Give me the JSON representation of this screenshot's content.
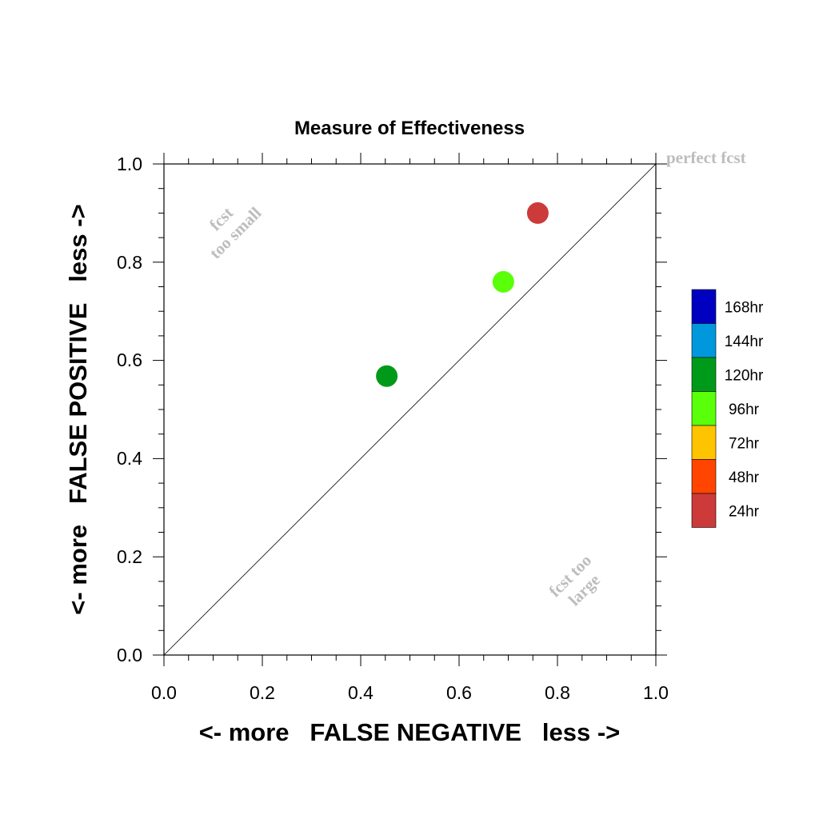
{
  "chart_data": {
    "type": "scatter",
    "title": "Measure of Effectiveness",
    "xlabel": "<- more   FALSE NEGATIVE   less ->",
    "ylabel": "<- more   FALSE POSITIVE   less ->",
    "xlim": [
      0,
      1
    ],
    "ylim": [
      0,
      1
    ],
    "x_ticks": [
      "0.0",
      "0.2",
      "0.4",
      "0.6",
      "0.8",
      "1.0"
    ],
    "y_ticks": [
      "0.0",
      "0.2",
      "0.4",
      "0.6",
      "0.8",
      "1.0"
    ],
    "grid": false,
    "diagonal_line": true,
    "legend_position": "right",
    "legend": [
      {
        "label": "168hr",
        "color": "#0000c0"
      },
      {
        "label": "144hr",
        "color": "#0098dc"
      },
      {
        "label": "120hr",
        "color": "#009a1a"
      },
      {
        "label": "96hr",
        "color": "#5aff0a"
      },
      {
        "label": "72hr",
        "color": "#ffc400"
      },
      {
        "label": "48hr",
        "color": "#ff4500"
      },
      {
        "label": "24hr",
        "color": "#cc3a3a"
      }
    ],
    "points": [
      {
        "x": 0.453,
        "y": 0.568,
        "color": "#009a1a"
      },
      {
        "x": 0.69,
        "y": 0.76,
        "color": "#5aff0a"
      },
      {
        "x": 0.76,
        "y": 0.9,
        "color": "#cc3a3a"
      }
    ],
    "annotations": {
      "perfect": "perfect fcst",
      "small_line1": "fcst",
      "small_line2": "too small",
      "large_line1": "fcst too",
      "large_line2": "large"
    }
  }
}
